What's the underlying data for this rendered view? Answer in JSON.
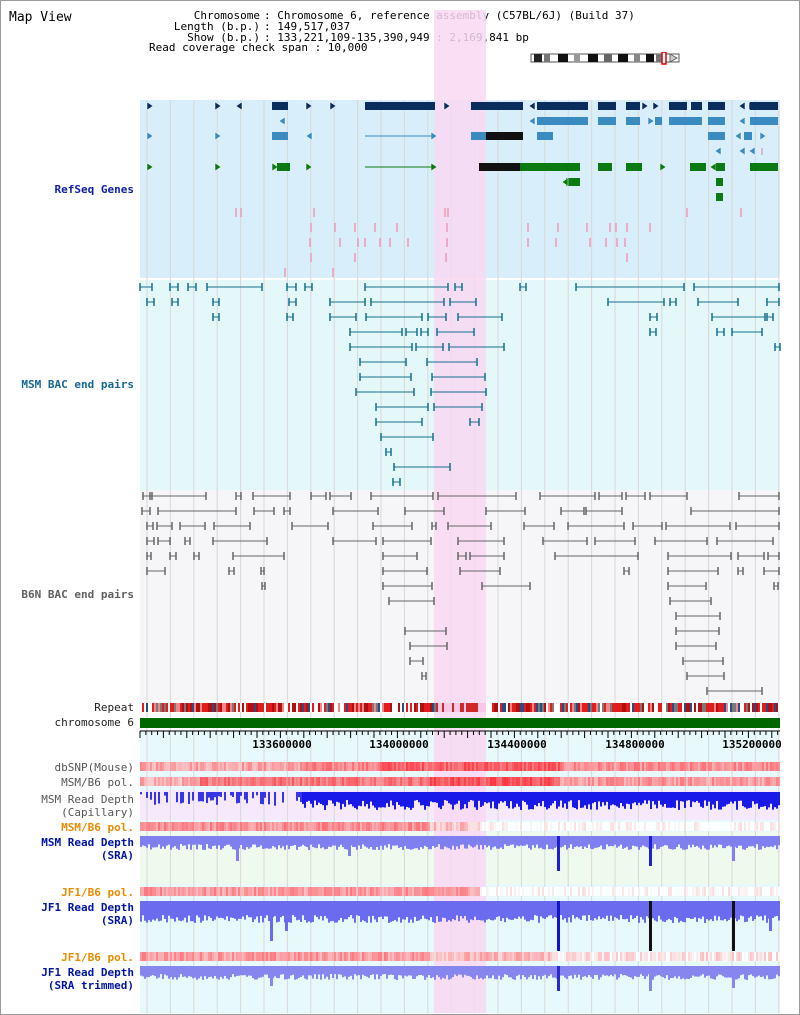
{
  "page": {
    "title": "Map View"
  },
  "info": {
    "labels": [
      "Chromosome",
      "Length (b.p.)",
      "Show (b.p.)"
    ],
    "values": [
      ": Chromosome 6, reference assembly (C57BL/6J) (Build 37)",
      ": 149,517,037",
      ": 133,221,109-135,390,949 : 2,169,841 bp"
    ],
    "coverage": "Read coverage check span : 10,000"
  },
  "tracks": {
    "refseq": "RefSeq Genes",
    "msm_bac": "MSM BAC end pairs",
    "b6n_bac": "B6N BAC end pairs",
    "repeat": "Repeat",
    "chromosome": "chromosome 6",
    "dbsnp": "dbSNP(Mouse)",
    "msm_b6_pol_1": "MSM/B6 pol.",
    "msm_depth_cap": "MSM Read Depth\n(Capillary)",
    "msm_b6_pol_2": "MSM/B6 pol.",
    "msm_depth_sra": "MSM Read Depth\n(SRA)",
    "jf1_b6_pol_1": "JF1/B6 pol.",
    "jf1_depth_sra": "JF1 Read Depth\n(SRA)",
    "jf1_b6_pol_2": "JF1/B6 pol.",
    "jf1_depth_trim": "JF1 Read Depth\n(SRA trimmed)"
  },
  "axis": {
    "ticks": [
      "133600000",
      "134000000",
      "134400000",
      "134800000",
      "135200000"
    ]
  },
  "colors": {
    "refseq_bg": "#d8eefa",
    "msm_bac_bg": "#e4f8fa",
    "b6n_bac_bg": "#f6f6f9",
    "highlight": "#f8d8f2",
    "gene_navy": "#0b2d5e",
    "gene_mid": "#3a8bbf",
    "gene_green": "#0c7a12",
    "msm_bac": "#14708e",
    "b6n_bac": "#666666",
    "depth_blue": "#2525e0",
    "snp_red": "#e83030",
    "chrom_green": "#006600"
  }
}
